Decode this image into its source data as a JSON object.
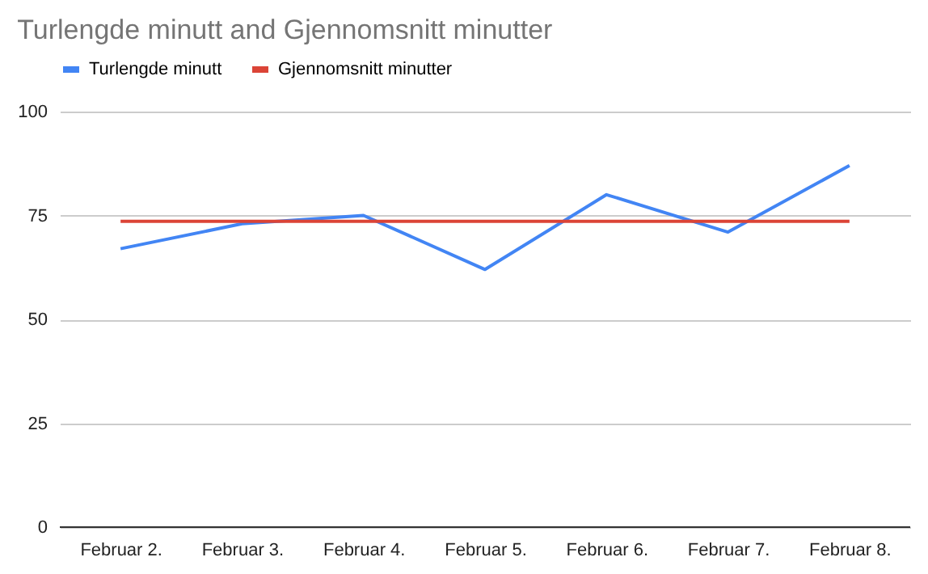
{
  "chart_data": {
    "type": "line",
    "title": "Turlengde minutt and Gjennomsnitt minutter",
    "categories": [
      "Februar 2.",
      "Februar 3.",
      "Februar 4.",
      "Februar 5.",
      "Februar 6.",
      "Februar 7.",
      "Februar 8."
    ],
    "series": [
      {
        "name": "Turlengde minutt",
        "color": "#4285f4",
        "values": [
          67,
          73,
          75,
          62,
          80,
          71,
          87
        ]
      },
      {
        "name": "Gjennomsnitt minutter",
        "color": "#db4437",
        "values": [
          73.6,
          73.6,
          73.6,
          73.6,
          73.6,
          73.6,
          73.6
        ]
      }
    ],
    "ylim": [
      0,
      100
    ],
    "yticks": [
      0,
      25,
      50,
      75,
      100
    ],
    "grid": "y",
    "legend": "top",
    "marker": "none",
    "line_style": "solid"
  }
}
